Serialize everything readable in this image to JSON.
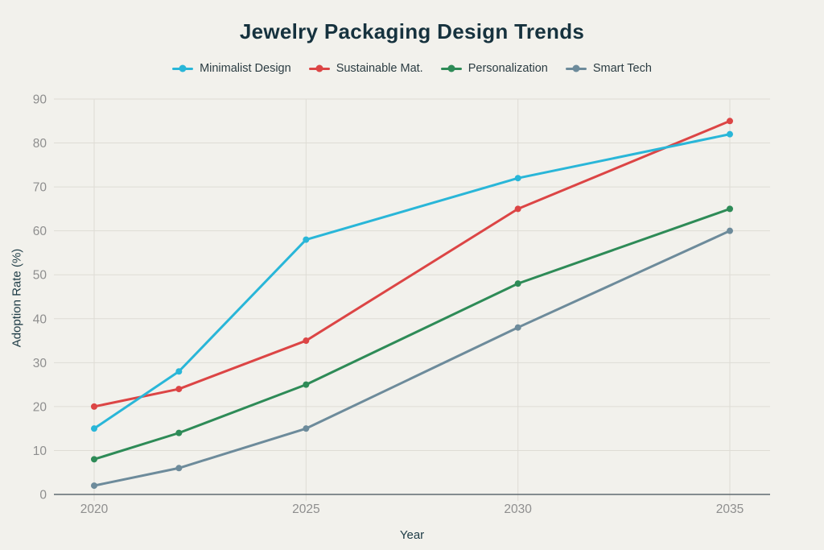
{
  "chart_data": {
    "type": "line",
    "title": "Jewelry Packaging Design Trends",
    "xlabel": "Year",
    "ylabel": "Adoption Rate (%)",
    "x": [
      2020,
      2022,
      2025,
      2030,
      2035
    ],
    "x_ticks": [
      2020,
      2025,
      2030,
      2035
    ],
    "x_tick_labels": [
      "2020",
      "2025",
      "2030",
      "2035"
    ],
    "y_ticks": [
      0,
      10,
      20,
      30,
      40,
      50,
      60,
      70,
      80,
      90
    ],
    "ylim": [
      0,
      90
    ],
    "xlim": [
      2020,
      2035
    ],
    "grid": true,
    "legend_position": "top",
    "series": [
      {
        "name": "Minimalist Design",
        "color": "#29b6d8",
        "values": [
          15,
          28,
          58,
          72,
          82
        ]
      },
      {
        "name": "Sustainable Mat.",
        "color": "#dc4545",
        "values": [
          20,
          24,
          35,
          65,
          85
        ]
      },
      {
        "name": "Personalization",
        "color": "#2e8b57",
        "values": [
          8,
          14,
          25,
          48,
          65
        ]
      },
      {
        "name": "Smart Tech",
        "color": "#6d8b9b",
        "values": [
          2,
          6,
          15,
          38,
          60
        ]
      }
    ]
  },
  "colors": {
    "background": "#f2f1ec",
    "title": "#16323e",
    "legend_text": "#2b3c42",
    "tick_label": "#8e8e8e",
    "axis_title": "#1d3b45",
    "gridline": "#dedcd5",
    "axis_line": "#606a70"
  }
}
